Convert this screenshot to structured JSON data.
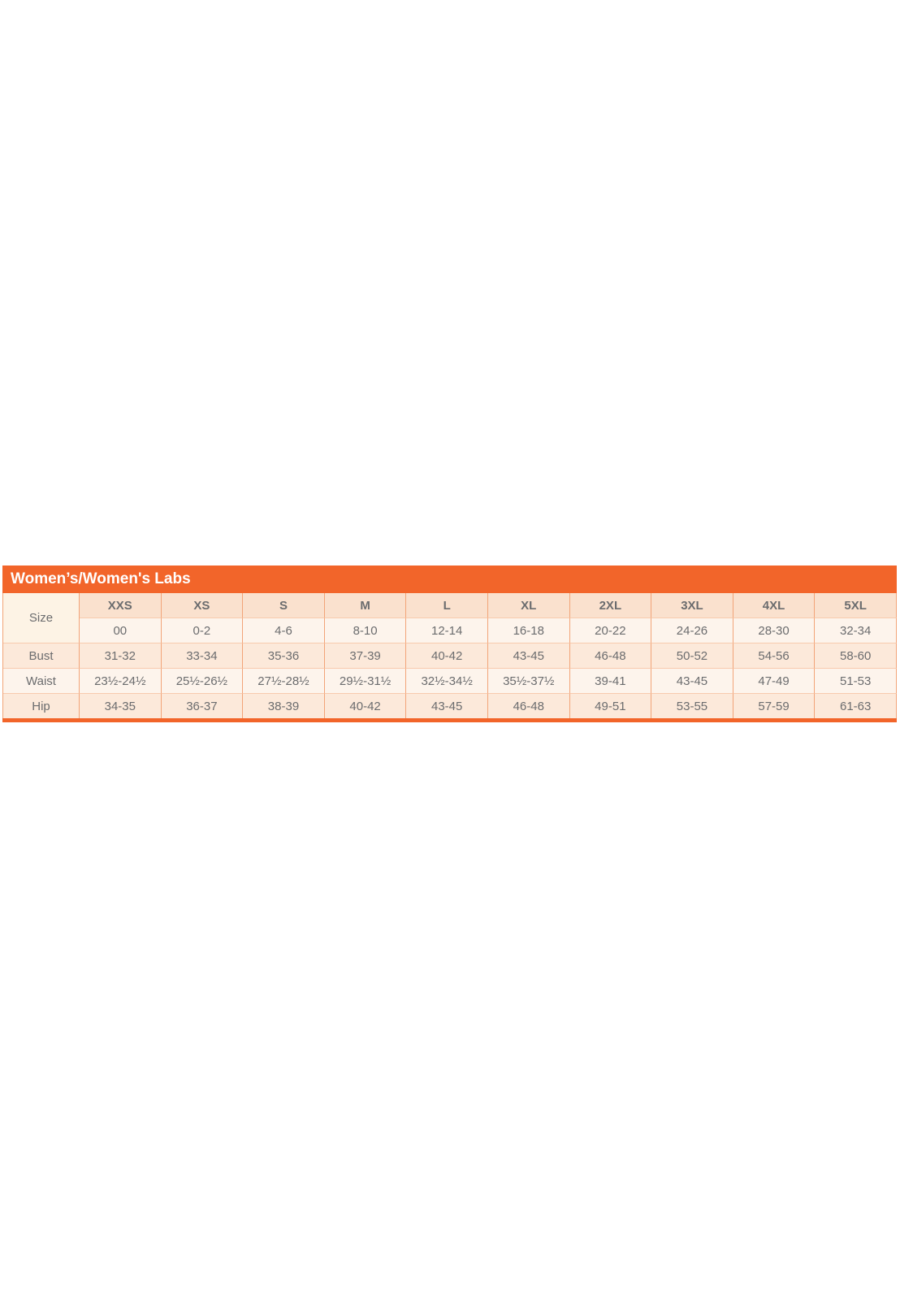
{
  "title": "Women’s/Women's Labs",
  "chart_data": {
    "type": "table",
    "title": "Women’s/Women's Labs",
    "corner_label": "Size",
    "columns": [
      "XXS",
      "XS",
      "S",
      "M",
      "L",
      "XL",
      "2XL",
      "3XL",
      "4XL",
      "5XL"
    ],
    "rows": [
      {
        "label": "",
        "values": [
          "00",
          "0-2",
          "4-6",
          "8-10",
          "12-14",
          "16-18",
          "20-22",
          "24-26",
          "28-30",
          "32-34"
        ]
      },
      {
        "label": "Bust",
        "values": [
          "31-32",
          "33-34",
          "35-36",
          "37-39",
          "40-42",
          "43-45",
          "46-48",
          "50-52",
          "54-56",
          "58-60"
        ]
      },
      {
        "label": "Waist",
        "values": [
          "23½-24½",
          "25½-26½",
          "27½-28½",
          "29½-31½",
          "32½-34½",
          "35½-37½",
          "39-41",
          "43-45",
          "47-49",
          "51-53"
        ]
      },
      {
        "label": "Hip",
        "values": [
          "34-35",
          "36-37",
          "38-39",
          "40-42",
          "43-45",
          "46-48",
          "49-51",
          "53-55",
          "57-59",
          "61-63"
        ]
      }
    ],
    "layout_hints": {
      "title_position": "top-left bar",
      "grid": true,
      "corner_cell_spans_header_and_first_row": true
    }
  },
  "colors": {
    "title_bar": "#F2652A",
    "bottom_border": "#F2652A",
    "vertical_border": "#F2A478",
    "horizontal_border": "#F8CAAD",
    "header_row_bg": "#FAE1CE",
    "row_light_bg": "#FDF4EC",
    "row_dark_bg": "#FCE9DA",
    "corner_bg": "#FDF3E5",
    "title_text": "#FFFFFF",
    "header_text": "#56575A",
    "cell_text": "#6B6C6E"
  }
}
